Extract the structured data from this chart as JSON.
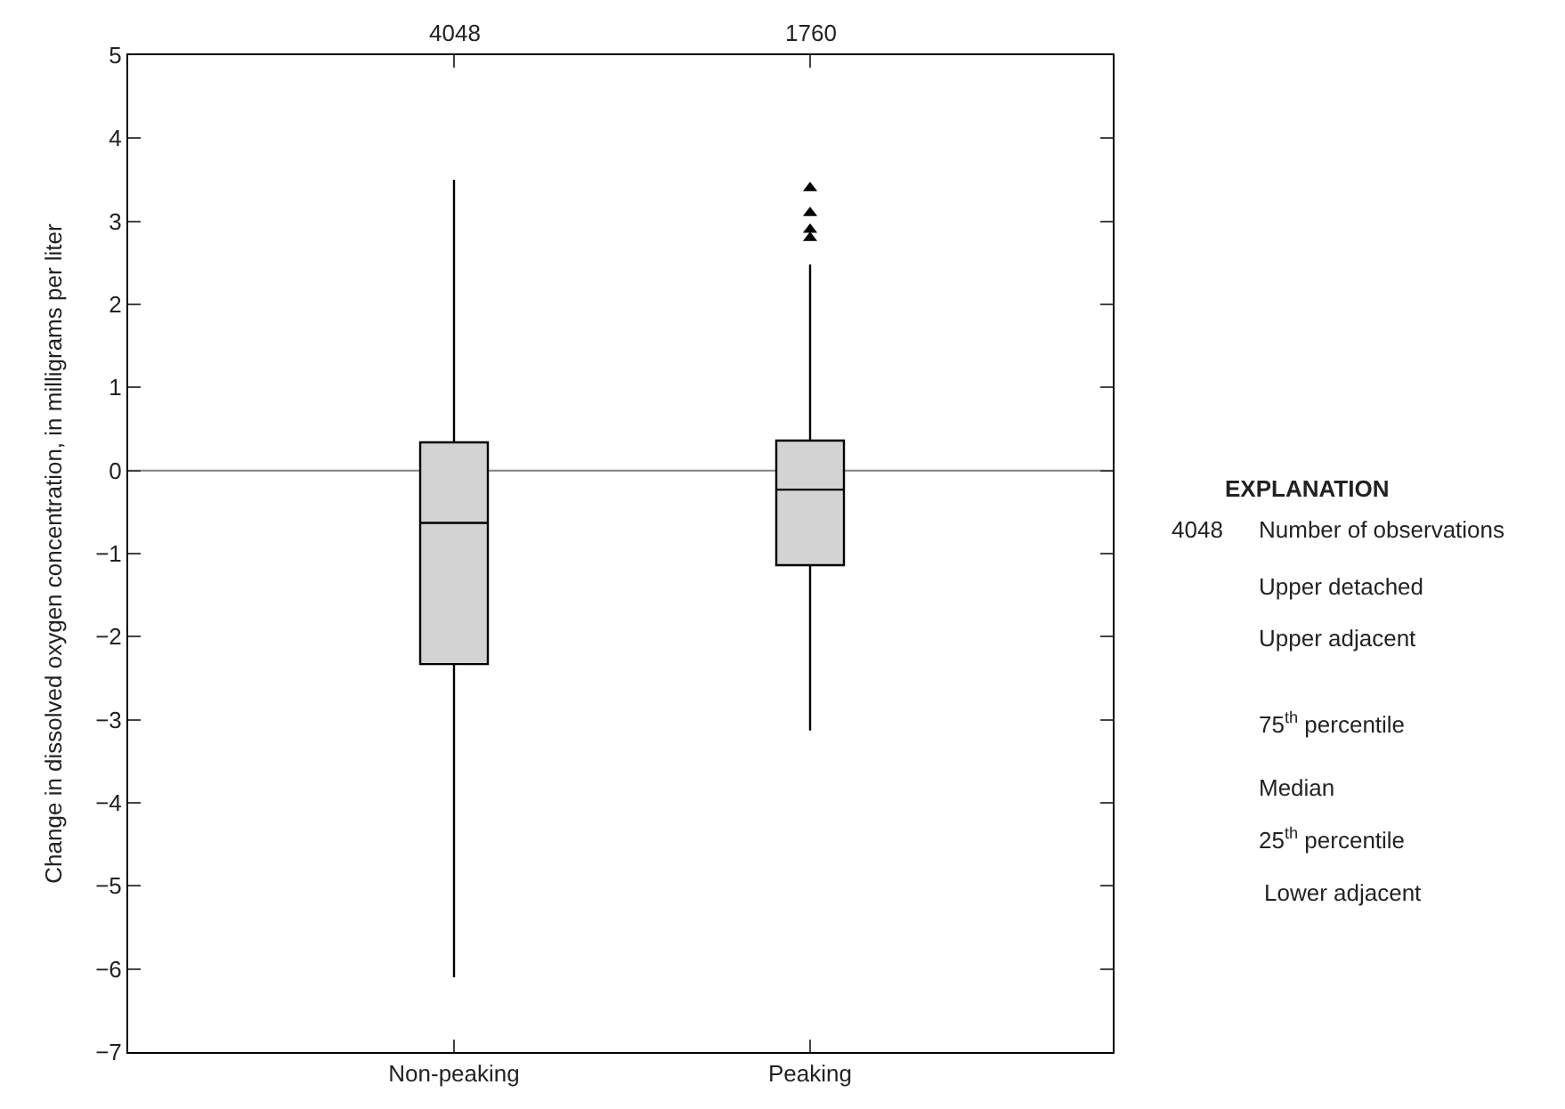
{
  "chart_data": {
    "type": "box",
    "ylabel": "Change in dissolved oxygen concentration, in milligrams per liter",
    "categories": [
      "Non-peaking",
      "Peaking"
    ],
    "boxes": [
      {
        "low": -6.1,
        "q1": -2.33,
        "median": -0.63,
        "q3": 0.34,
        "high": 3.5
      },
      {
        "low": -3.13,
        "q1": -1.14,
        "median": -0.23,
        "q3": 0.36,
        "high": 2.48,
        "outliers": [
          3.4,
          3.1,
          2.9,
          2.8
        ]
      }
    ],
    "color": "#d3d3d3",
    "ylim": [
      -7,
      5
    ],
    "yticks": [
      {
        "value": -7,
        "label": "−7"
      },
      {
        "value": -6,
        "label": "−6"
      },
      {
        "value": -5,
        "label": "−5"
      },
      {
        "value": -4,
        "label": "−4"
      },
      {
        "value": -3,
        "label": "−3"
      },
      {
        "value": -2,
        "label": "−2"
      },
      {
        "value": -1,
        "label": "−1"
      },
      0,
      1,
      2,
      3,
      4,
      5
    ],
    "ref_lines": [
      {
        "axis": "y",
        "value": 0,
        "color": "#808080"
      }
    ],
    "marker": "triangle",
    "grid": false,
    "legend": false,
    "annotations": [
      {
        "text": "4048",
        "x": "Non-peaking"
      },
      {
        "text": "1760",
        "x": "Peaking"
      },
      "EXPLANATION",
      "4048",
      "Number of observations",
      "Upper detached",
      "Upper adjacent",
      "75$^{th}$ percentile",
      "Median",
      "25$^{th}$ percentile",
      "Lower adjacent"
    ]
  }
}
